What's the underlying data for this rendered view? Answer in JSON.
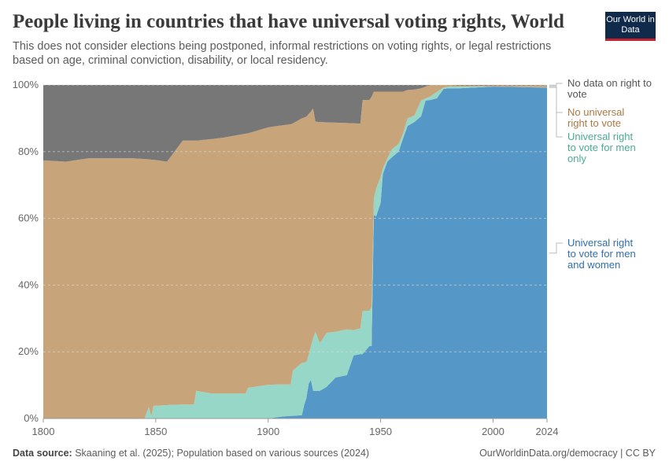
{
  "header": {
    "title": "People living in countries that have universal voting rights, World",
    "subtitle": "This does not consider elections being postponed, informal restrictions on voting rights, or legal restrictions based on age, criminal conviction, disability, or local residency.",
    "logo": "Our World in Data"
  },
  "footer": {
    "source_label": "Data source:",
    "source": "Skaaning et al. (2025); Population based on various sources (2024)",
    "link": "OurWorldinData.org/democracy | CC BY"
  },
  "chart_data": {
    "type": "area",
    "stacked": true,
    "xlim": [
      1800,
      2024
    ],
    "ylim": [
      0,
      100
    ],
    "grid": true,
    "legend": "right",
    "x_ticks": [
      "1800",
      "1850",
      "1900",
      "1950",
      "2000",
      "2024"
    ],
    "y_ticks": [
      "0%",
      "20%",
      "40%",
      "60%",
      "80%",
      "100%"
    ],
    "x": [
      1800,
      1810,
      1820,
      1830,
      1840,
      1845,
      1847,
      1848,
      1849,
      1855,
      1857,
      1862,
      1867,
      1868,
      1875,
      1880,
      1890,
      1891,
      1900,
      1905,
      1910,
      1911,
      1915,
      1916,
      1917,
      1918,
      1919,
      1920,
      1921,
      1923,
      1926,
      1930,
      1935,
      1938,
      1941,
      1942,
      1945,
      1946,
      1947,
      1948,
      1950,
      1951,
      1953,
      1955,
      1958,
      1960,
      1962,
      1965,
      1968,
      1970,
      1972,
      1975,
      1978,
      1980,
      1985,
      2000,
      2024
    ],
    "series": [
      {
        "name": "Universal right to vote for men and women",
        "color": "#5597c6",
        "label_color": "#2f6fad",
        "values": [
          0,
          0,
          0,
          0,
          0,
          0,
          0,
          0,
          0,
          0,
          0,
          0,
          0,
          0,
          0,
          0,
          0,
          0,
          0,
          0.5,
          0.8,
          0.8,
          1,
          4,
          6.1,
          10.4,
          11.6,
          8.3,
          8.3,
          8.3,
          9.5,
          12.3,
          13,
          18.9,
          19.3,
          19.3,
          21.7,
          21.7,
          61,
          60.6,
          64.6,
          73.3,
          77,
          78.3,
          80,
          84,
          87.7,
          88.9,
          90.6,
          95.3,
          95.5,
          96,
          98.8,
          99,
          99,
          99.5,
          99.2
        ]
      },
      {
        "name": "Universal right to vote for men only",
        "color": "#97d7c7",
        "label_color": "#4aab93",
        "values": [
          0,
          0,
          0,
          0,
          0,
          0,
          3.5,
          0.5,
          3.8,
          4,
          4.1,
          4.2,
          4.2,
          8.3,
          7.5,
          7.5,
          7.5,
          9.2,
          10.1,
          9.7,
          9.4,
          13.6,
          15.7,
          12.7,
          10.9,
          8.6,
          10.1,
          15.7,
          17.7,
          14.3,
          16.2,
          13.7,
          13.7,
          7.6,
          7.7,
          13,
          10.6,
          11.8,
          5,
          8.3,
          7.8,
          1.7,
          1,
          2.4,
          2.3,
          1.5,
          2.3,
          1.9,
          4.7,
          0.7,
          1,
          1.9,
          0.4,
          0.5,
          0.5,
          0,
          0.1
        ]
      },
      {
        "name": "No universal right to vote",
        "color": "#c8a47a",
        "label_color": "#a87a45",
        "values": [
          77.4,
          77,
          78,
          78,
          78,
          77.8,
          74.2,
          77.1,
          73.8,
          73,
          74.7,
          79.1,
          79.1,
          75,
          76.3,
          76.7,
          77.9,
          76.3,
          77.2,
          77.6,
          78,
          74.1,
          73.3,
          73.5,
          73.5,
          72.3,
          70.3,
          69,
          63,
          66.3,
          63.1,
          62.7,
          61.9,
          62,
          61.4,
          63.2,
          63.2,
          63,
          32,
          29.1,
          25.6,
          23,
          20,
          17.3,
          15.7,
          12.5,
          8.5,
          7.8,
          3.7,
          3.5,
          3.5,
          2.1,
          0.8,
          0.5,
          0.3,
          0.3,
          0.6
        ]
      },
      {
        "name": "No data on right to vote",
        "color": "#777777",
        "label_color": "#555555",
        "values": [
          22.6,
          23,
          22,
          22,
          22,
          22.2,
          22.3,
          22.4,
          22.4,
          23,
          21.2,
          16.7,
          16.7,
          16.7,
          16.2,
          15.8,
          14.6,
          14.5,
          12.7,
          12.2,
          11.8,
          11.5,
          10,
          9.8,
          9.5,
          8.7,
          8,
          7,
          11,
          11.1,
          11.2,
          11.3,
          11.4,
          11.5,
          11.6,
          4.5,
          4.5,
          3.5,
          2,
          2,
          2,
          2,
          2,
          2,
          2,
          2,
          1.5,
          1.4,
          1,
          0.5,
          0,
          0,
          0,
          0,
          0.2,
          0.2,
          0.1
        ]
      }
    ]
  }
}
